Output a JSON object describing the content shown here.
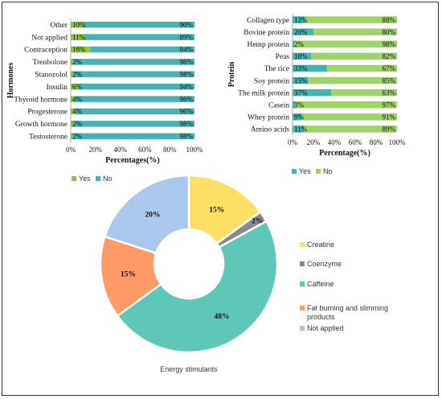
{
  "colors": {
    "yes": "#8cc63f",
    "no": "#45b3b3",
    "yes2": "#45b3b3",
    "no2": "#9fd36a"
  },
  "chart_data": [
    {
      "type": "bar",
      "stacked": true,
      "orientation": "horizontal",
      "ylabel": "Hormones",
      "xlabel": "Percentages(%)",
      "xlim": [
        0,
        100
      ],
      "xticks": [
        "0%",
        "20%",
        "40%",
        "60%",
        "80%",
        "100%"
      ],
      "legend": [
        "Yes",
        "No"
      ],
      "legend_position": "bottom",
      "categories": [
        "Other",
        "Not applied",
        "Contraception",
        "Trenbolone",
        "Stanozolol",
        "Insulin",
        "Thyroid hormone",
        "Progesterone",
        "Growth hormone",
        "Testosterone"
      ],
      "series": [
        {
          "name": "Yes",
          "values": [
            10,
            11,
            16,
            2,
            2,
            6,
            4,
            4,
            2,
            2
          ],
          "labels": [
            "10%",
            "11%",
            "16%",
            "2%",
            "2%",
            "6%",
            "4%",
            "4%",
            "2%",
            "2%"
          ]
        },
        {
          "name": "No",
          "values": [
            90,
            89,
            84,
            98,
            98,
            94,
            96,
            96,
            98,
            98
          ],
          "labels": [
            "90%",
            "89%",
            "84%",
            "98%",
            "98%",
            "94%",
            "96%",
            "96%",
            "98%",
            "98%"
          ]
        }
      ]
    },
    {
      "type": "bar",
      "stacked": true,
      "orientation": "horizontal",
      "ylabel": "Protein",
      "xlabel": "Percentage(%)",
      "xlim": [
        0,
        100
      ],
      "xticks": [
        "0%",
        "20%",
        "40%",
        "60%",
        "80%",
        "100%"
      ],
      "legend": [
        "Yes",
        "No"
      ],
      "legend_position": "bottom",
      "categories": [
        "Collagen type",
        "Bovine protein",
        "Hemp protein",
        "Peas",
        "The rice",
        "Soy protein",
        "The milk protein",
        "Casein",
        "Whey protein",
        "Amino acids"
      ],
      "series": [
        {
          "name": "Yes",
          "values": [
            12,
            20,
            2,
            18,
            33,
            15,
            37,
            3,
            9,
            11
          ],
          "labels": [
            "12%",
            "20%",
            "2%",
            "18%",
            "33%",
            "15%",
            "37%",
            "3%",
            "9%",
            "11%"
          ]
        },
        {
          "name": "No",
          "values": [
            88,
            80,
            98,
            82,
            67,
            85,
            63,
            97,
            91,
            89
          ],
          "labels": [
            "88%",
            "80%",
            "98%",
            "82%",
            "67%",
            "85%",
            "63%",
            "97%",
            "91%",
            "89%"
          ]
        }
      ]
    },
    {
      "type": "pie",
      "donut": true,
      "title": "Energy stimulants",
      "legend_position": "right",
      "slices": [
        {
          "name": "Creatine",
          "value": 15,
          "label": "15%",
          "color": "#ffe066"
        },
        {
          "name": "Coenzyme",
          "value": 2,
          "label": "2%",
          "color": "#8a8a8a"
        },
        {
          "name": "Caffeine",
          "value": 48,
          "label": "48%",
          "color": "#5fc7b8"
        },
        {
          "name": "Fat burning and slimming products",
          "value": 15,
          "label": "15%",
          "color": "#ff9966"
        },
        {
          "name": "Not applied",
          "value": 20,
          "label": "20%",
          "color": "#a9c8ec"
        }
      ]
    }
  ]
}
